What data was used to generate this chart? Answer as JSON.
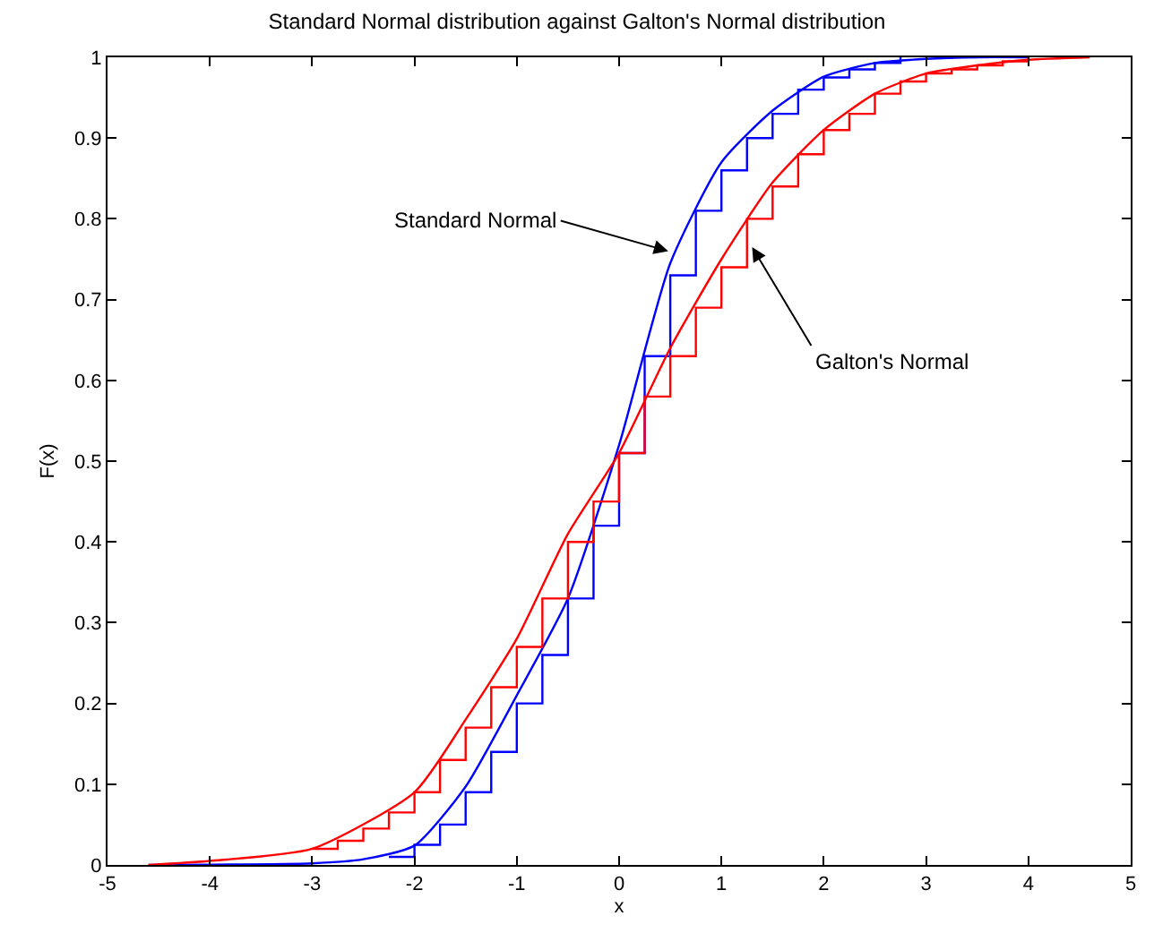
{
  "chart_data": {
    "type": "line",
    "title": "Standard Normal distribution against Galton's Normal distribution",
    "xlabel": "x",
    "ylabel": "F(x)",
    "xlim": [
      -5,
      5
    ],
    "xticks": [
      -5,
      -4,
      -3,
      -2,
      -1,
      0,
      1,
      2,
      3,
      4,
      5
    ],
    "ylim": [
      0,
      1
    ],
    "yticks": [
      0,
      0.1,
      0.2,
      0.3,
      0.4,
      0.5,
      0.6,
      0.7,
      0.8,
      0.9,
      1
    ],
    "marker": "none",
    "line_style": "solid",
    "annotations": [
      {
        "text": "Standard Normal",
        "x": 0.48,
        "y": 0.76
      },
      {
        "text": "Galton's Normal",
        "x": 1.3,
        "y": 0.765
      }
    ],
    "series": [
      {
        "color": "#0000ff",
        "x": [
          -4.6,
          -3,
          -2.5,
          -2,
          -1.5,
          -1,
          -0.5,
          0,
          0.5,
          1,
          1.5,
          2,
          2.5,
          3,
          3.5,
          4
        ],
        "values": [
          0,
          0.002,
          0.007,
          0.024,
          0.097,
          0.21,
          0.33,
          0.52,
          0.745,
          0.87,
          0.934,
          0.976,
          0.993,
          0.998,
          1,
          1
        ]
      },
      {
        "type": "step",
        "color": "#0000ff",
        "x": [
          -2.25,
          -2,
          -1.75,
          -1.5,
          -1.25,
          -1,
          -0.75,
          -0.5,
          -0.25,
          0,
          0.25,
          0.5,
          0.75,
          1,
          1.25,
          1.5,
          1.75,
          2,
          2.25,
          2.5,
          2.75
        ],
        "values": [
          0.01,
          0.025,
          0.05,
          0.09,
          0.14,
          0.2,
          0.26,
          0.33,
          0.42,
          0.51,
          0.63,
          0.73,
          0.81,
          0.86,
          0.9,
          0.93,
          0.96,
          0.975,
          0.985,
          0.993,
          1
        ]
      },
      {
        "color": "#ff0000",
        "x": [
          -4.6,
          -4,
          -3,
          -2,
          -1.5,
          -1,
          -0.5,
          0,
          0.5,
          1,
          1.5,
          2,
          2.5,
          3,
          3.5,
          4,
          4.6
        ],
        "values": [
          0,
          0.005,
          0.02,
          0.09,
          0.18,
          0.28,
          0.41,
          0.51,
          0.64,
          0.75,
          0.845,
          0.91,
          0.955,
          0.98,
          0.99,
          0.997,
          1
        ]
      },
      {
        "type": "step",
        "color": "#ff0000",
        "x": [
          -3,
          -2.75,
          -2.5,
          -2.25,
          -2,
          -1.75,
          -1.5,
          -1.25,
          -1,
          -0.75,
          -0.5,
          -0.25,
          0,
          0.25,
          0.5,
          0.75,
          1,
          1.25,
          1.5,
          1.75,
          2,
          2.25,
          2.5,
          2.75,
          3,
          3.25,
          3.5,
          3.75,
          4
        ],
        "values": [
          0.02,
          0.03,
          0.045,
          0.065,
          0.09,
          0.13,
          0.17,
          0.22,
          0.27,
          0.33,
          0.4,
          0.45,
          0.51,
          0.58,
          0.63,
          0.69,
          0.74,
          0.8,
          0.84,
          0.88,
          0.91,
          0.93,
          0.955,
          0.97,
          0.98,
          0.985,
          0.99,
          0.995,
          1
        ]
      }
    ]
  }
}
